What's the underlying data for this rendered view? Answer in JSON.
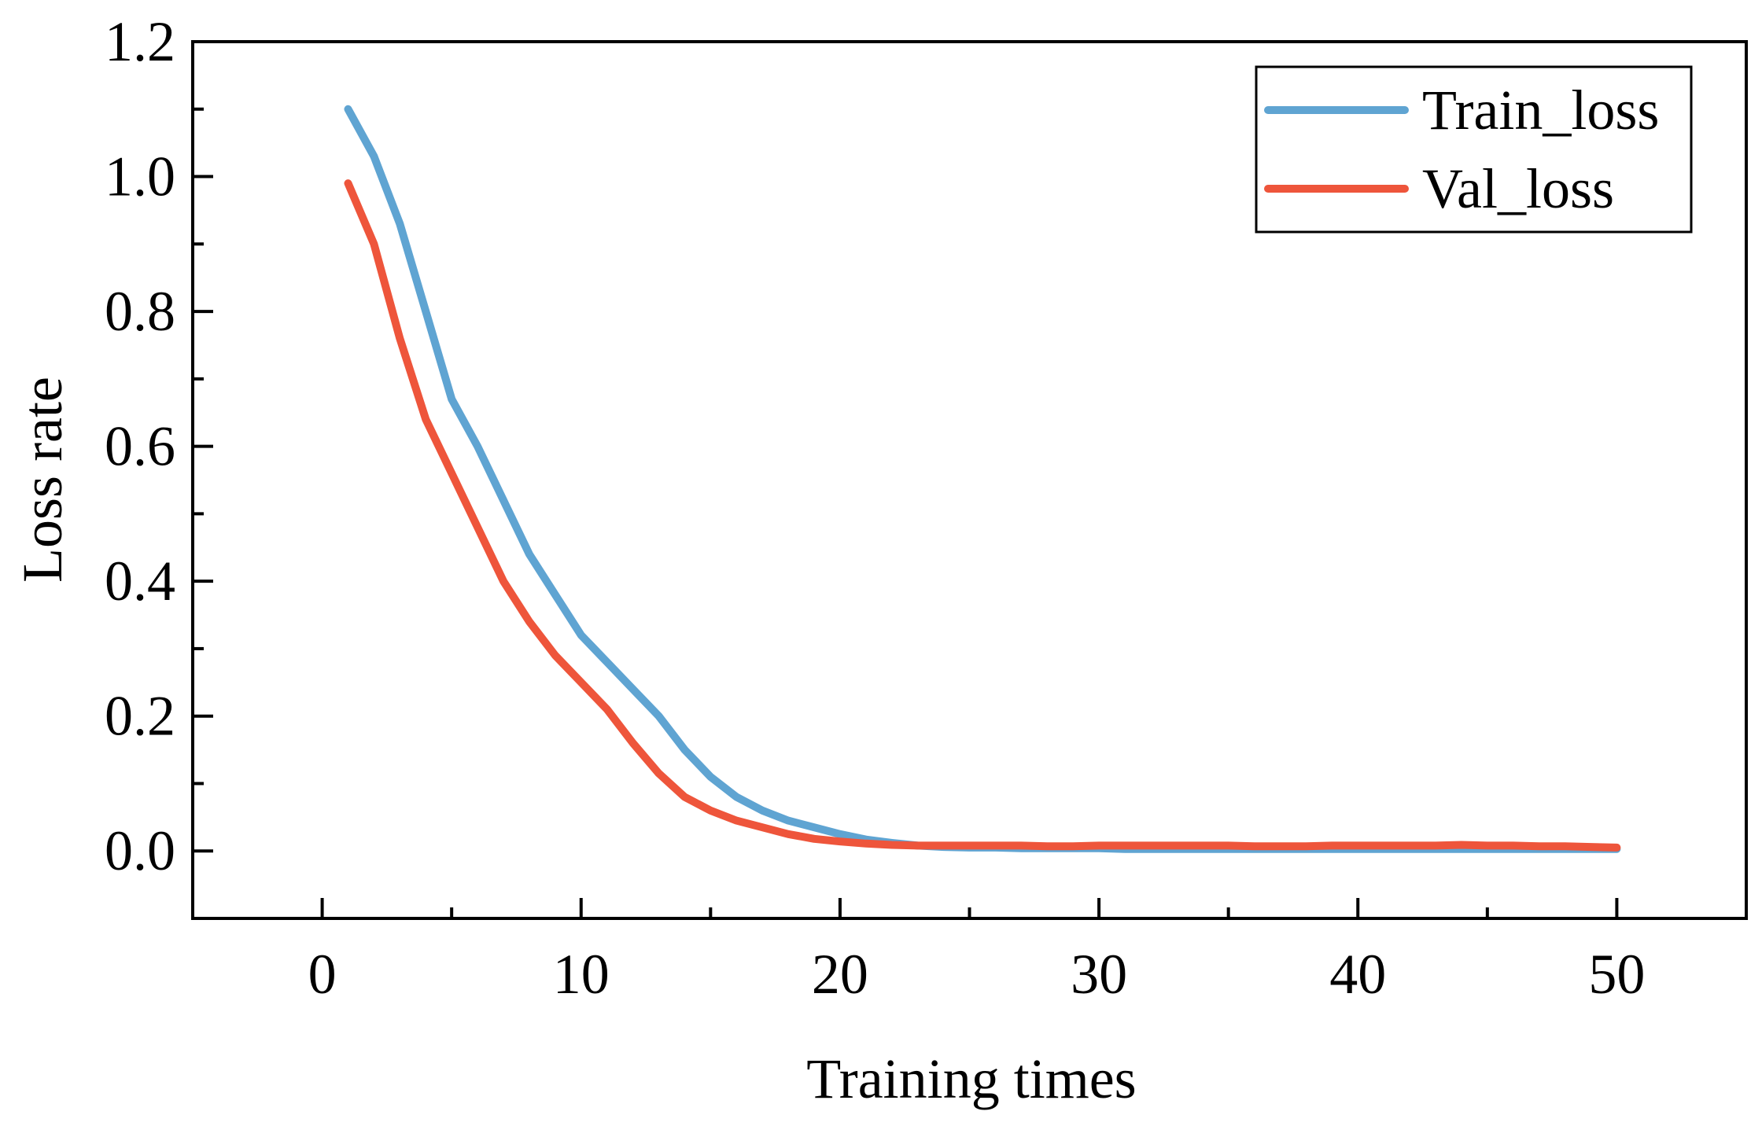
{
  "chart_data": {
    "type": "line",
    "title": "",
    "xlabel": "Training times",
    "ylabel": "Loss rate",
    "xlim": [
      -5,
      55
    ],
    "ylim": [
      -0.1,
      1.2
    ],
    "xticks": [
      0,
      10,
      20,
      30,
      40,
      50
    ],
    "xtick_labels": [
      "0",
      "10",
      "20",
      "30",
      "40",
      "50"
    ],
    "yticks": [
      0.0,
      0.2,
      0.4,
      0.6,
      0.8,
      1.0,
      1.2
    ],
    "ytick_labels": [
      "0.0",
      "0.2",
      "0.4",
      "0.6",
      "0.8",
      "1.0",
      "1.2"
    ],
    "grid": false,
    "legend_position": "top-right",
    "x": [
      1,
      2,
      3,
      4,
      5,
      6,
      7,
      8,
      9,
      10,
      11,
      12,
      13,
      14,
      15,
      16,
      17,
      18,
      19,
      20,
      21,
      22,
      23,
      24,
      25,
      26,
      27,
      28,
      29,
      30,
      31,
      32,
      33,
      34,
      35,
      36,
      37,
      38,
      39,
      40,
      41,
      42,
      43,
      44,
      45,
      46,
      47,
      48,
      49,
      50
    ],
    "series": [
      {
        "name": "Train_loss",
        "color": "#5fa4d2",
        "values": [
          1.1,
          1.03,
          0.93,
          0.8,
          0.67,
          0.6,
          0.52,
          0.44,
          0.38,
          0.32,
          0.28,
          0.24,
          0.2,
          0.15,
          0.11,
          0.08,
          0.06,
          0.045,
          0.035,
          0.025,
          0.017,
          0.012,
          0.008,
          0.006,
          0.005,
          0.005,
          0.004,
          0.004,
          0.004,
          0.004,
          0.003,
          0.003,
          0.003,
          0.003,
          0.003,
          0.003,
          0.003,
          0.003,
          0.003,
          0.003,
          0.003,
          0.003,
          0.003,
          0.003,
          0.003,
          0.003,
          0.003,
          0.003,
          0.003,
          0.003
        ]
      },
      {
        "name": "Val_loss",
        "color": "#ee553b",
        "values": [
          0.99,
          0.9,
          0.76,
          0.64,
          0.56,
          0.48,
          0.4,
          0.34,
          0.29,
          0.25,
          0.21,
          0.16,
          0.115,
          0.08,
          0.06,
          0.045,
          0.035,
          0.025,
          0.018,
          0.014,
          0.011,
          0.009,
          0.008,
          0.008,
          0.008,
          0.008,
          0.008,
          0.007,
          0.007,
          0.008,
          0.008,
          0.008,
          0.008,
          0.008,
          0.008,
          0.007,
          0.007,
          0.007,
          0.008,
          0.008,
          0.008,
          0.008,
          0.008,
          0.009,
          0.008,
          0.008,
          0.007,
          0.007,
          0.006,
          0.005
        ]
      }
    ]
  }
}
